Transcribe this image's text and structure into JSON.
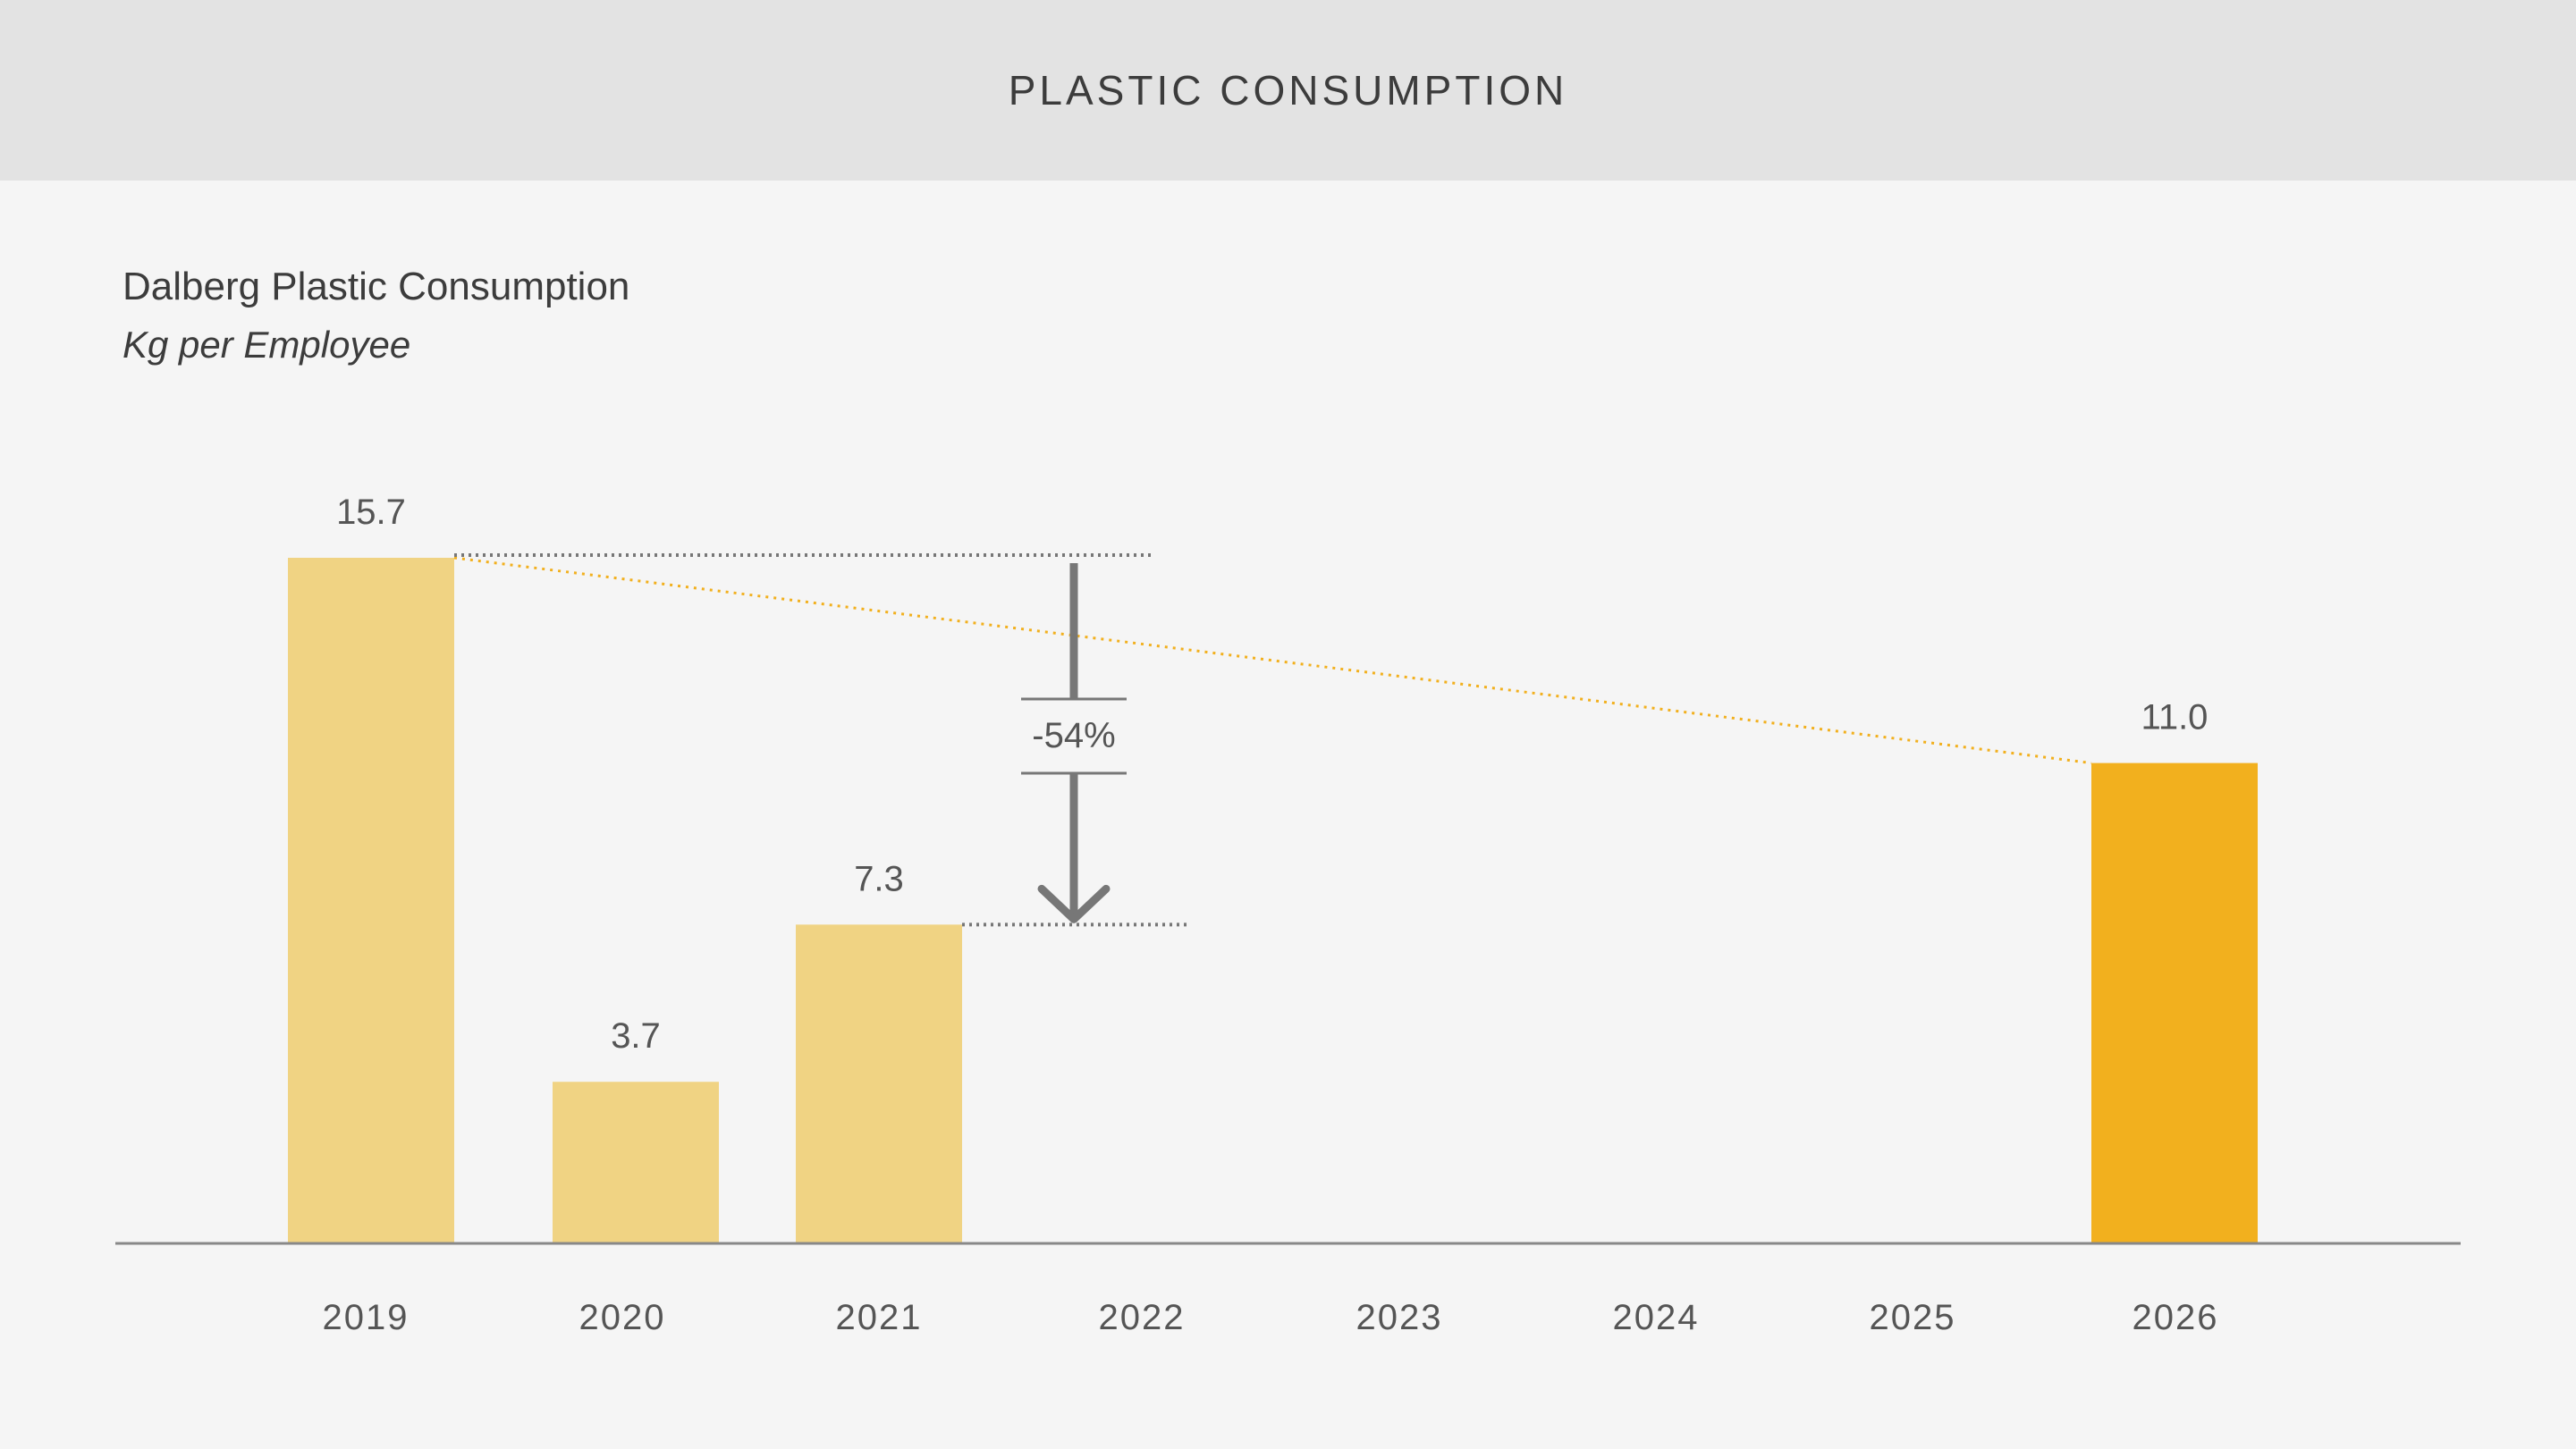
{
  "header": {
    "title": "PLASTIC CONSUMPTION"
  },
  "colors": {
    "bar_actual": "#f0d383",
    "bar_target": "#f2b01e",
    "trend_line": "#f2b01e",
    "annotation": "#777777",
    "axis": "#888888",
    "header_bg": "#e3e3e3",
    "background": "#f5f5f5"
  },
  "chart_data": {
    "type": "bar",
    "title": "Dalberg Plastic Consumption",
    "subtitle": "Kg per Employee",
    "categories": [
      "2019",
      "2020",
      "2021",
      "2022",
      "2023",
      "2024",
      "2025",
      "2026"
    ],
    "values": [
      15.7,
      3.7,
      7.3,
      null,
      null,
      null,
      null,
      11.0
    ],
    "value_labels": [
      "15.7",
      "3.7",
      "7.3",
      "",
      "",
      "",
      "",
      "11.0"
    ],
    "highlight_category": "2026",
    "ylim": [
      0,
      15.7
    ],
    "grid": false,
    "trend_line": {
      "from": "2019",
      "to": "2026",
      "style": "dotted"
    },
    "annotation": {
      "label": "-54%",
      "from_category": "2019",
      "to_category": "2021",
      "direction": "down"
    }
  }
}
